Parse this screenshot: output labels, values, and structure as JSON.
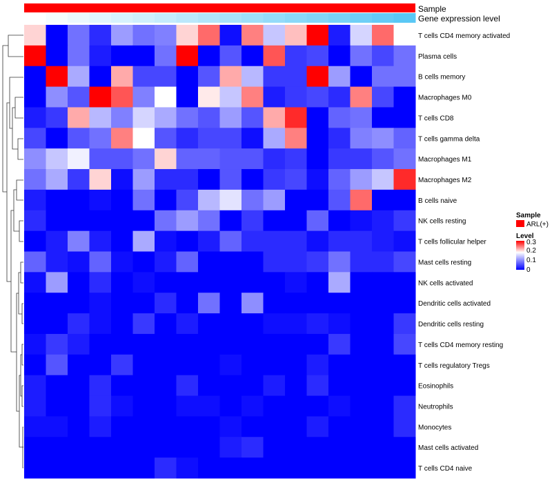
{
  "chart_data": {
    "type": "heatmap",
    "title": "",
    "annotation_tracks": [
      {
        "name": "Sample",
        "value": "ARL(+)",
        "color": "#ff0000"
      },
      {
        "name": "Gene expression level",
        "values": [
          0.0,
          0.06,
          0.12,
          0.18,
          0.24,
          0.29,
          0.35,
          0.41,
          0.47,
          0.53,
          0.59,
          0.65,
          0.71,
          0.76,
          0.82,
          0.88,
          0.94,
          1.0
        ],
        "color_low": "#ffffff",
        "color_high": "#5ac8f5"
      }
    ],
    "row_labels": [
      "T cells CD4 memory activated",
      "Plasma cells",
      "B cells memory",
      "Macrophages M0",
      "T cells CD8",
      "T cells gamma delta",
      "Macrophages M1",
      "Macrophages M2",
      "B cells naive",
      "NK cells resting",
      "T cells follicular helper",
      "Mast cells resting",
      "NK cells activated",
      "Dendritic cells activated",
      "Dendritic cells resting",
      "T cells CD4 memory resting",
      "T cells regulatory  Tregs",
      "Eosinophils",
      "Neutrophils",
      "Monocytes",
      "Mast cells activated",
      "T cells CD4 naive"
    ],
    "n_columns": 18,
    "values": [
      [
        0.2,
        0.0,
        0.08,
        0.03,
        0.11,
        0.08,
        0.09,
        0.2,
        0.25,
        0.01,
        0.24,
        0.14,
        0.21,
        0.3,
        0.02,
        0.15,
        0.25,
        0.18
      ],
      [
        0.3,
        0.0,
        0.08,
        0.02,
        0.0,
        0.0,
        0.08,
        0.3,
        0.0,
        0.06,
        0.0,
        0.26,
        0.04,
        0.05,
        0.0,
        0.08,
        0.05,
        0.08
      ],
      [
        0.0,
        0.3,
        0.12,
        0.0,
        0.22,
        0.05,
        0.05,
        0.0,
        0.06,
        0.22,
        0.13,
        0.04,
        0.04,
        0.3,
        0.11,
        0.0,
        0.08,
        0.08
      ],
      [
        0.0,
        0.1,
        0.06,
        0.3,
        0.26,
        0.09,
        0.18,
        0.0,
        0.19,
        0.14,
        0.24,
        0.02,
        0.04,
        0.05,
        0.03,
        0.24,
        0.05,
        0.0
      ],
      [
        0.02,
        0.04,
        0.22,
        0.13,
        0.09,
        0.15,
        0.12,
        0.08,
        0.06,
        0.11,
        0.06,
        0.22,
        0.28,
        0.0,
        0.07,
        0.08,
        0.0,
        0.0
      ],
      [
        0.05,
        0.0,
        0.06,
        0.08,
        0.24,
        0.18,
        0.06,
        0.03,
        0.05,
        0.05,
        0.01,
        0.12,
        0.24,
        0.0,
        0.03,
        0.09,
        0.1,
        0.07
      ],
      [
        0.1,
        0.14,
        0.17,
        0.06,
        0.06,
        0.08,
        0.2,
        0.07,
        0.07,
        0.06,
        0.06,
        0.03,
        0.04,
        0.0,
        0.04,
        0.04,
        0.06,
        0.08
      ],
      [
        0.08,
        0.12,
        0.04,
        0.2,
        0.01,
        0.11,
        0.03,
        0.03,
        0.0,
        0.06,
        0.0,
        0.04,
        0.05,
        0.01,
        0.07,
        0.11,
        0.14,
        0.28
      ],
      [
        0.02,
        0.0,
        0.0,
        0.01,
        0.0,
        0.08,
        0.0,
        0.05,
        0.13,
        0.16,
        0.08,
        0.11,
        0.0,
        0.0,
        0.06,
        0.25,
        0.0,
        0.0
      ],
      [
        0.03,
        0.0,
        0.0,
        0.0,
        0.0,
        0.0,
        0.08,
        0.11,
        0.08,
        0.0,
        0.04,
        0.0,
        0.0,
        0.07,
        0.0,
        0.01,
        0.02,
        0.04
      ],
      [
        0.0,
        0.02,
        0.09,
        0.02,
        0.0,
        0.12,
        0.01,
        0.0,
        0.02,
        0.07,
        0.03,
        0.03,
        0.03,
        0.01,
        0.03,
        0.03,
        0.02,
        0.01
      ],
      [
        0.07,
        0.02,
        0.01,
        0.07,
        0.01,
        0.0,
        0.02,
        0.07,
        0.0,
        0.0,
        0.0,
        0.03,
        0.03,
        0.04,
        0.08,
        0.03,
        0.03,
        0.05
      ],
      [
        0.01,
        0.11,
        0.0,
        0.03,
        0.0,
        0.01,
        0.0,
        0.0,
        0.0,
        0.0,
        0.0,
        0.0,
        0.01,
        0.0,
        0.12,
        0.0,
        0.0,
        0.0
      ],
      [
        0.0,
        0.0,
        0.0,
        0.01,
        0.0,
        0.0,
        0.03,
        0.0,
        0.08,
        0.0,
        0.1,
        0.0,
        0.0,
        0.0,
        0.0,
        0.0,
        0.0,
        0.0
      ],
      [
        0.0,
        0.0,
        0.03,
        0.01,
        0.0,
        0.04,
        0.0,
        0.02,
        0.0,
        0.0,
        0.0,
        0.01,
        0.01,
        0.02,
        0.01,
        0.0,
        0.0,
        0.04
      ],
      [
        0.01,
        0.04,
        0.02,
        0.0,
        0.0,
        0.0,
        0.0,
        0.0,
        0.0,
        0.0,
        0.0,
        0.0,
        0.0,
        0.0,
        0.04,
        0.0,
        0.0,
        0.05
      ],
      [
        0.0,
        0.06,
        0.0,
        0.0,
        0.04,
        0.0,
        0.0,
        0.0,
        0.0,
        0.01,
        0.0,
        0.0,
        0.0,
        0.02,
        0.0,
        0.0,
        0.0,
        0.0
      ],
      [
        0.02,
        0.0,
        0.0,
        0.03,
        0.0,
        0.0,
        0.0,
        0.03,
        0.0,
        0.0,
        0.0,
        0.02,
        0.0,
        0.03,
        0.0,
        0.0,
        0.0,
        0.0
      ],
      [
        0.02,
        0.0,
        0.0,
        0.03,
        0.01,
        0.0,
        0.0,
        0.01,
        0.01,
        0.0,
        0.01,
        0.0,
        0.0,
        0.0,
        0.01,
        0.0,
        0.0,
        0.03
      ],
      [
        0.01,
        0.01,
        0.0,
        0.02,
        0.0,
        0.0,
        0.0,
        0.0,
        0.0,
        0.01,
        0.0,
        0.0,
        0.0,
        0.02,
        0.0,
        0.0,
        0.0,
        0.03
      ],
      [
        0.0,
        0.0,
        0.0,
        0.0,
        0.0,
        0.0,
        0.0,
        0.0,
        0.0,
        0.02,
        0.03,
        0.0,
        0.0,
        0.0,
        0.0,
        0.0,
        0.0,
        0.0
      ],
      [
        0.0,
        0.0,
        0.0,
        0.0,
        0.0,
        0.0,
        0.03,
        0.01,
        0.0,
        0.0,
        0.0,
        0.0,
        0.0,
        0.0,
        0.0,
        0.0,
        0.0,
        0.0
      ]
    ],
    "color_scale": {
      "low": "#0000ff",
      "mid": "#ffffff",
      "high": "#ff0000",
      "mid_value": 0.18,
      "max_value": 0.3
    },
    "legends": [
      {
        "title": "Sample",
        "entries": [
          {
            "label": "ARL(+)",
            "color": "#ff0000"
          }
        ]
      },
      {
        "title": "Level",
        "ticks": [
          "0.3",
          "0.2",
          "0.1",
          "0"
        ]
      }
    ],
    "dendrogram": "row clustering (left side)"
  }
}
